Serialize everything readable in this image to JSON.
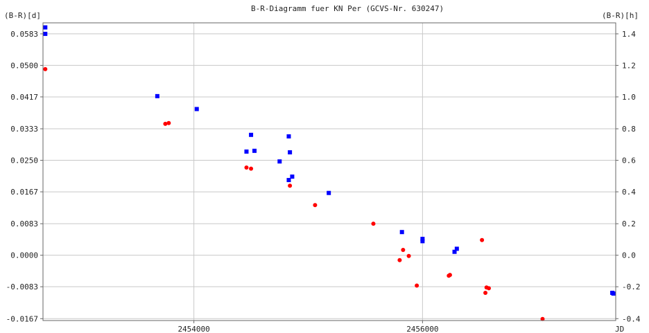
{
  "chart_data": {
    "type": "scatter",
    "title": "B-R-Diagramm fuer KN Per (GCVS-Nr. 630247)",
    "ylabel_left": "(B-R)[d]",
    "ylabel_right": "(B-R)[h]",
    "xlabel": "JD",
    "xlim": [
      2452680,
      2457690
    ],
    "ylim": [
      -0.0172,
      0.0612
    ],
    "x_ticks": [
      "2454000",
      "2456000"
    ],
    "y_ticks_left": [
      "0.0583",
      "0.0500",
      "0.0417",
      "0.0333",
      "0.0250",
      "0.0167",
      "0.0083",
      "0.0000",
      "-0.0083",
      "-0.0167"
    ],
    "y_ticks_right": [
      "1.4",
      "1.2",
      "1.0",
      "0.8",
      "0.6",
      "0.4",
      "0.2",
      "0.0",
      "-0.2",
      "-0.4"
    ],
    "grid": true,
    "series": [
      {
        "marker": "square",
        "color": "#0000ff",
        "points": [
          [
            2452700,
            0.06
          ],
          [
            2452700,
            0.0583
          ],
          [
            2453680,
            0.0419
          ],
          [
            2454025,
            0.0385
          ],
          [
            2454500,
            0.0317
          ],
          [
            2454830,
            0.0313
          ],
          [
            2454460,
            0.0273
          ],
          [
            2454530,
            0.0275
          ],
          [
            2454840,
            0.0271
          ],
          [
            2454750,
            0.0247
          ],
          [
            2454860,
            0.0207
          ],
          [
            2454830,
            0.0198
          ],
          [
            2455180,
            0.0164
          ],
          [
            2455820,
            0.0061
          ],
          [
            2456000,
            0.0043
          ],
          [
            2456000,
            0.0037
          ],
          [
            2456280,
            0.0009
          ],
          [
            2456300,
            0.0017
          ],
          [
            2457660,
            -0.0099
          ],
          [
            2457670,
            -0.0101
          ]
        ]
      },
      {
        "marker": "circle",
        "color": "#ff0000",
        "points": [
          [
            2452700,
            0.049
          ],
          [
            2453750,
            0.0346
          ],
          [
            2453780,
            0.0348
          ],
          [
            2454460,
            0.0231
          ],
          [
            2454500,
            0.0228
          ],
          [
            2454840,
            0.0183
          ],
          [
            2455060,
            0.0132
          ],
          [
            2455570,
            0.0083
          ],
          [
            2455830,
            0.0014
          ],
          [
            2455880,
            -0.0002
          ],
          [
            2455800,
            -0.0013
          ],
          [
            2455950,
            -0.008
          ],
          [
            2456230,
            -0.0054
          ],
          [
            2456240,
            -0.0052
          ],
          [
            2456520,
            0.004
          ],
          [
            2456560,
            -0.0085
          ],
          [
            2456580,
            -0.0087
          ],
          [
            2456550,
            -0.0099
          ],
          [
            2457050,
            -0.0168
          ]
        ]
      }
    ]
  }
}
